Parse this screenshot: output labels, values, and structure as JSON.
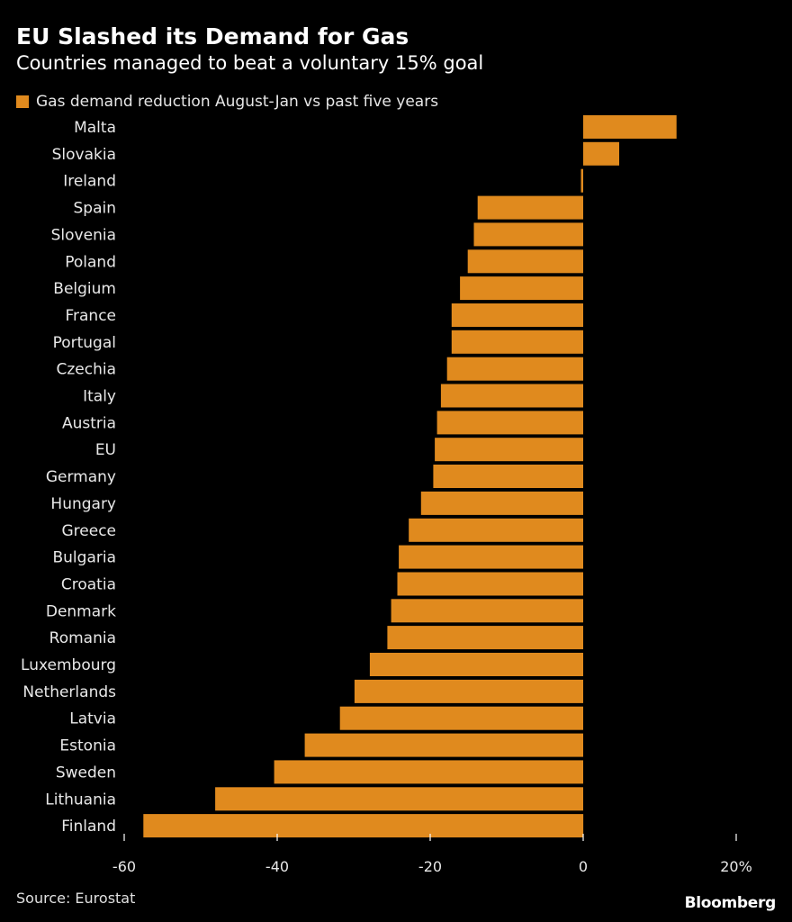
{
  "header": {
    "title": "EU Slashed its Demand for Gas",
    "subtitle": "Countries managed to beat a voluntary 15% goal"
  },
  "legend": {
    "label": "Gas demand reduction August-Jan vs past five years"
  },
  "footer": {
    "source": "Source: Eurostat",
    "brand": "Bloomberg"
  },
  "colors": {
    "bar": "#E08A1E",
    "axis": "#ffffff",
    "background": "#000000"
  },
  "chart_data": {
    "type": "bar",
    "orientation": "horizontal",
    "title": "EU Slashed its Demand for Gas",
    "subtitle": "Countries managed to beat a voluntary 15% goal",
    "xlabel": "",
    "ylabel": "",
    "xlim": [
      -60,
      20
    ],
    "ticks": [
      -60,
      -40,
      -20,
      0,
      20
    ],
    "tick_labels": [
      "-60",
      "-40",
      "-20",
      "0",
      "20%"
    ],
    "legend_position": "top-left",
    "grid": false,
    "series": [
      {
        "name": "Gas demand reduction August-Jan vs past five years",
        "values": [
          12.2,
          4.7,
          -0.3,
          -13.8,
          -14.3,
          -15.1,
          -16.1,
          -17.2,
          -17.2,
          -17.8,
          -18.6,
          -19.1,
          -19.4,
          -19.6,
          -21.2,
          -22.8,
          -24.1,
          -24.3,
          -25.1,
          -25.6,
          -27.9,
          -29.9,
          -31.8,
          -36.4,
          -40.4,
          -48.1,
          -57.5
        ]
      }
    ],
    "categories": [
      "Malta",
      "Slovakia",
      "Ireland",
      "Spain",
      "Slovenia",
      "Poland",
      "Belgium",
      "France",
      "Portugal",
      "Czechia",
      "Italy",
      "Austria",
      "EU",
      "Germany",
      "Hungary",
      "Greece",
      "Bulgaria",
      "Croatia",
      "Denmark",
      "Romania",
      "Luxembourg",
      "Netherlands",
      "Latvia",
      "Estonia",
      "Sweden",
      "Lithuania",
      "Finland"
    ]
  }
}
